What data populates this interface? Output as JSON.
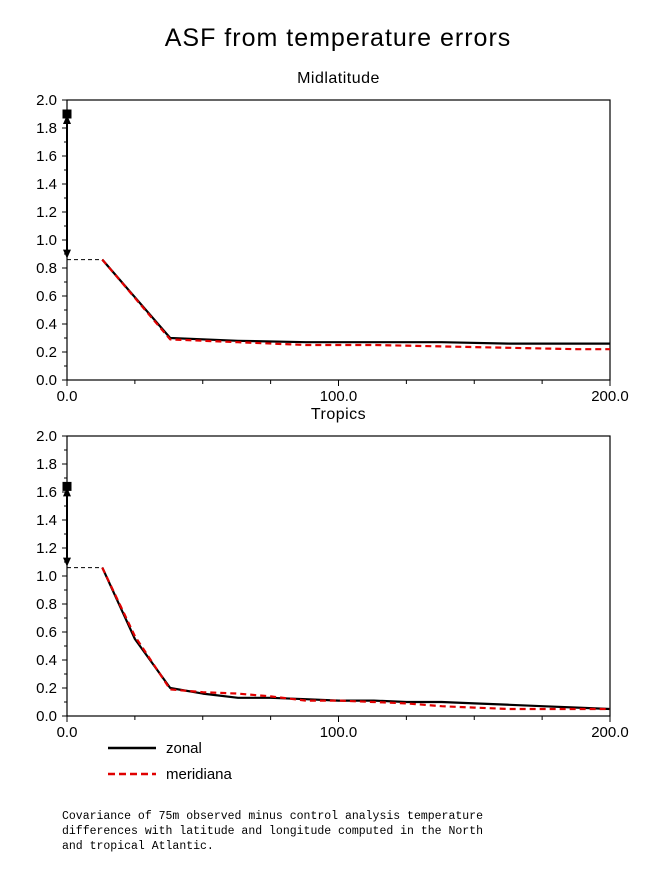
{
  "title": "ASF from temperature errors",
  "caption": "Covariance of 75m observed minus control analysis temperature\ndifferences with latitude and longitude computed in the North\nand tropical Atlantic.",
  "legend": {
    "placement": "bottom-left",
    "entries": [
      {
        "label": "zonal",
        "color": "#000000",
        "style": "solid"
      },
      {
        "label": "meridiana",
        "color": "#e00000",
        "style": "dashed"
      }
    ]
  },
  "chart_data": [
    {
      "type": "line",
      "title": "Midlatitude",
      "xlabel": "",
      "ylabel": "",
      "xlim": [
        0,
        200
      ],
      "ylim": [
        0,
        2
      ],
      "x_ticks": [
        "0.0",
        "100.0",
        "200.0"
      ],
      "y_ticks": [
        "0.0",
        "0.2",
        "0.4",
        "0.6",
        "0.8",
        "1.0",
        "1.2",
        "1.4",
        "1.6",
        "1.8",
        "2.0"
      ],
      "grid": false,
      "marker": {
        "x": 0,
        "y": 1.9
      },
      "arrow": {
        "x": 0,
        "from": 1.9,
        "to": 0.86
      },
      "nugget_line": {
        "y": 0.86,
        "x_from": 0,
        "x_to": 13
      },
      "series": [
        {
          "name": "zonal",
          "color": "#000000",
          "style": "solid",
          "x": [
            13,
            38,
            63,
            88,
            113,
            138,
            163,
            188,
            200
          ],
          "y": [
            0.86,
            0.3,
            0.28,
            0.27,
            0.27,
            0.27,
            0.26,
            0.26,
            0.26
          ]
        },
        {
          "name": "meridiana",
          "color": "#e00000",
          "style": "dashed",
          "x": [
            13,
            38,
            63,
            88,
            113,
            138,
            163,
            188,
            200
          ],
          "y": [
            0.86,
            0.29,
            0.27,
            0.25,
            0.25,
            0.24,
            0.23,
            0.22,
            0.22
          ]
        }
      ]
    },
    {
      "type": "line",
      "title": "Tropics",
      "xlabel": "",
      "ylabel": "",
      "xlim": [
        0,
        200
      ],
      "ylim": [
        0,
        2
      ],
      "x_ticks": [
        "0.0",
        "100.0",
        "200.0"
      ],
      "y_ticks": [
        "0.0",
        "0.2",
        "0.4",
        "0.6",
        "0.8",
        "1.0",
        "1.2",
        "1.4",
        "1.6",
        "1.8",
        "2.0"
      ],
      "grid": false,
      "marker": {
        "x": 0,
        "y": 1.64
      },
      "arrow": {
        "x": 0,
        "from": 1.64,
        "to": 1.06
      },
      "nugget_line": {
        "y": 1.06,
        "x_from": 0,
        "x_to": 13
      },
      "series": [
        {
          "name": "zonal",
          "color": "#000000",
          "style": "solid",
          "x": [
            13,
            25,
            38,
            50,
            63,
            75,
            88,
            100,
            113,
            125,
            138,
            150,
            163,
            175,
            188,
            200
          ],
          "y": [
            1.06,
            0.55,
            0.2,
            0.16,
            0.13,
            0.13,
            0.12,
            0.11,
            0.11,
            0.1,
            0.1,
            0.09,
            0.08,
            0.07,
            0.06,
            0.05
          ]
        },
        {
          "name": "meridiana",
          "color": "#e00000",
          "style": "dashed",
          "x": [
            13,
            25,
            38,
            50,
            63,
            75,
            88,
            100,
            113,
            125,
            138,
            150,
            163,
            175,
            188,
            200
          ],
          "y": [
            1.06,
            0.57,
            0.19,
            0.17,
            0.16,
            0.14,
            0.11,
            0.11,
            0.1,
            0.09,
            0.07,
            0.06,
            0.05,
            0.05,
            0.05,
            0.05
          ]
        }
      ]
    }
  ]
}
